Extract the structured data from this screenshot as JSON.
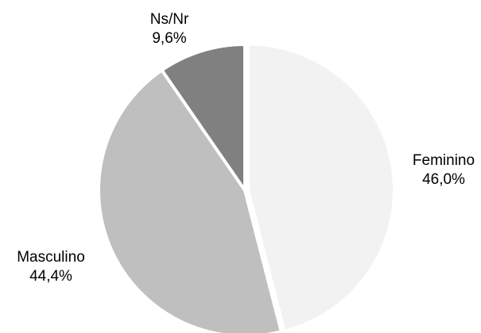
{
  "chart_data": {
    "type": "pie",
    "title": "",
    "slices": [
      {
        "name": "Feminino",
        "value": 46.0,
        "label": "46,0%",
        "color": "#f2f2f2"
      },
      {
        "name": "Masculino",
        "value": 44.4,
        "label": "44,4%",
        "color": "#bfbfbf"
      },
      {
        "name": "Ns/Nr",
        "value": 9.6,
        "label": "9,6%",
        "color": "#808080"
      }
    ]
  }
}
